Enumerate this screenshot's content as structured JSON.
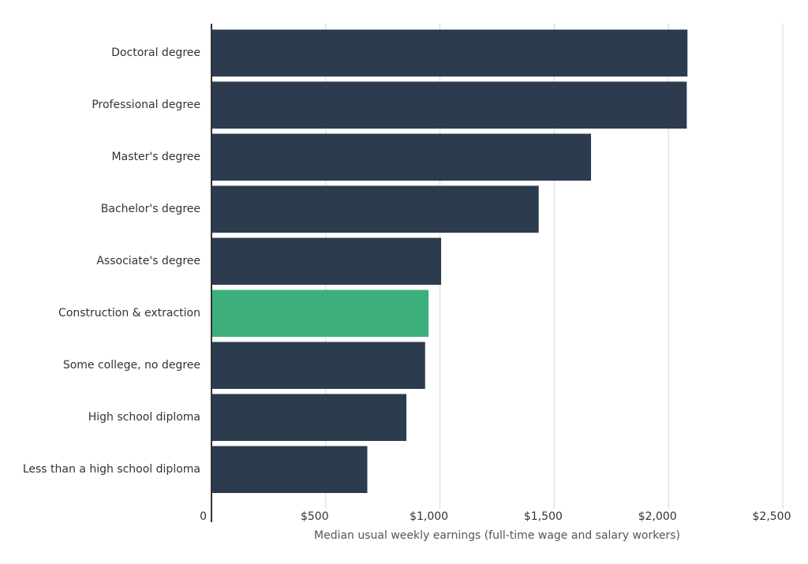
{
  "chart_data": {
    "type": "bar",
    "orientation": "horizontal",
    "x_label": "Median usual weekly earnings (full-time wage and salary workers)",
    "categories": [
      "Doctoral degree",
      "Professional degree",
      "Master's degree",
      "Bachelor's degree",
      "Associate's degree",
      "Construction & extraction",
      "Some college, no degree",
      "High school diploma",
      "Less than a high school diploma"
    ],
    "values": [
      2083,
      2080,
      1661,
      1432,
      1005,
      950,
      935,
      853,
      682
    ],
    "colors": [
      "#2d3b4e",
      "#2d3b4e",
      "#2d3b4e",
      "#2d3b4e",
      "#2d3b4e",
      "#3daf7c",
      "#2d3b4e",
      "#2d3b4e",
      "#2d3b4e"
    ],
    "xlim": [
      0,
      2500
    ],
    "xticks": [
      0,
      {
        "value": 500,
        "label": "$500"
      },
      {
        "value": 1000,
        "label": "$1,000"
      },
      {
        "value": 1500,
        "label": "$1,500"
      },
      {
        "value": 2000,
        "label": "$2,000"
      },
      {
        "value": 2500,
        "label": "$2,500"
      }
    ],
    "grid": true
  }
}
